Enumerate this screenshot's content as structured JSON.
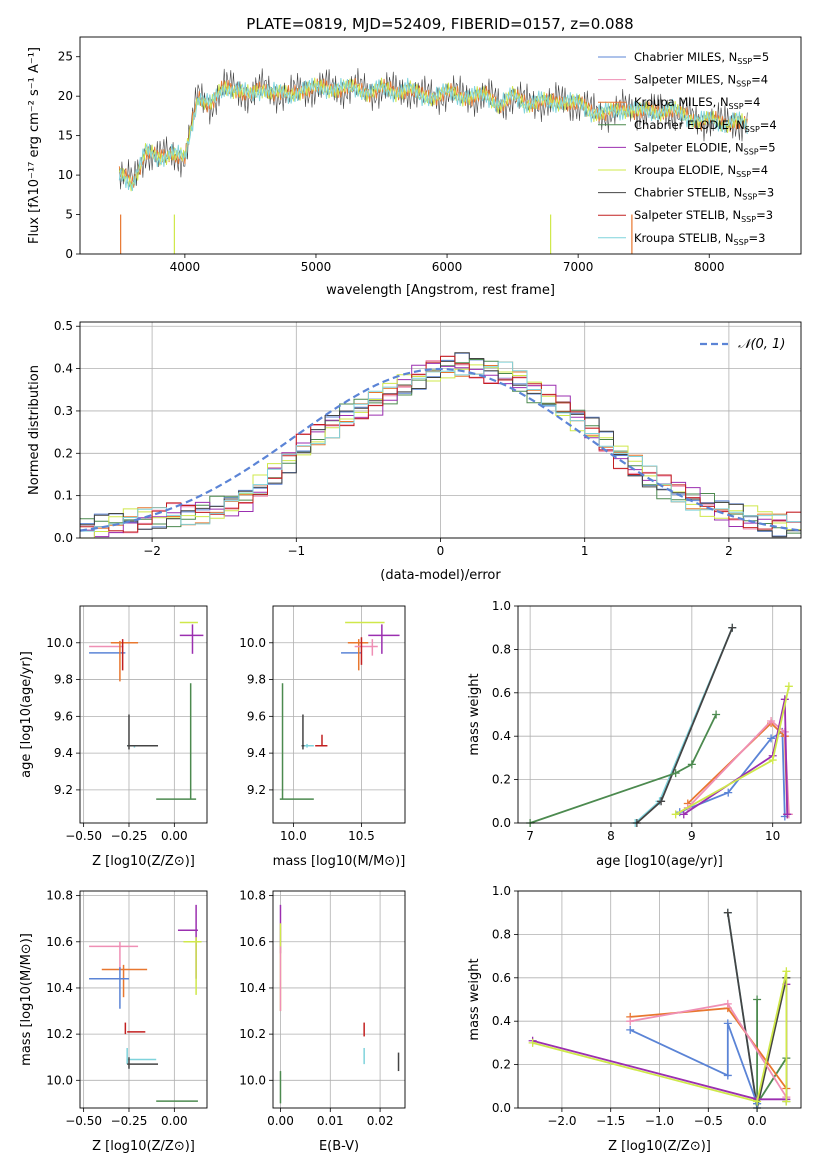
{
  "title": "PLATE=0819, MJD=52409, FIBERID=0157, z=0.088",
  "colors": {
    "Chabrier MILES": "#5b84d6",
    "Salpeter MILES": "#ef8fb5",
    "Kroupa MILES": "#e8772f",
    "Chabrier ELODIE": "#4c8a4f",
    "Salpeter ELODIE": "#9b2fb0",
    "Kroupa ELODIE": "#cfe84a",
    "Chabrier STELIB": "#444444",
    "Salpeter STELIB": "#c22020",
    "Kroupa STELIB": "#7fd3dc",
    "gauss": "#5b84d6",
    "grid": "#b0b0b0"
  },
  "chart_data": [
    {
      "type": "line",
      "name": "spectrum",
      "xlabel": "wavelength [Angstrom, rest frame]",
      "ylabel": "Flux [fλ10⁻¹⁷ erg cm⁻² s⁻¹ A⁻¹]",
      "xlim": [
        3200,
        8700
      ],
      "ylim": [
        0,
        27.5
      ],
      "xticks": [
        4000,
        5000,
        6000,
        7000,
        8000
      ],
      "yticks": [
        0,
        5,
        10,
        15,
        20,
        25
      ],
      "grid": false,
      "legend": "top-right",
      "legend_entries": [
        {
          "name": "Chabrier MILES, N",
          "n": "5"
        },
        {
          "name": "Salpeter MILES, N",
          "n": "4"
        },
        {
          "name": "Kroupa MILES, N",
          "n": "4"
        },
        {
          "name": "Chabrier ELODIE, N",
          "n": "4"
        },
        {
          "name": "Salpeter ELODIE, N",
          "n": "5"
        },
        {
          "name": "Kroupa ELODIE, N",
          "n": "4"
        },
        {
          "name": "Chabrier STELIB, N",
          "n": "3"
        },
        {
          "name": "Salpeter STELIB, N",
          "n": "3"
        },
        {
          "name": "Kroupa STELIB, N",
          "n": "3"
        }
      ],
      "legend_sub": "SSP",
      "data_points": [
        [
          3500,
          10
        ],
        [
          3600,
          9
        ],
        [
          3700,
          13
        ],
        [
          3800,
          12
        ],
        [
          3900,
          13
        ],
        [
          4000,
          12
        ],
        [
          4100,
          20
        ],
        [
          4200,
          19
        ],
        [
          4300,
          21
        ],
        [
          4400,
          21
        ],
        [
          4500,
          20
        ],
        [
          4600,
          21
        ],
        [
          4700,
          20.5
        ],
        [
          4800,
          20
        ],
        [
          4900,
          21
        ],
        [
          5000,
          21
        ],
        [
          5100,
          21
        ],
        [
          5200,
          21
        ],
        [
          5300,
          21
        ],
        [
          5400,
          20.5
        ],
        [
          5500,
          21
        ],
        [
          5600,
          20.5
        ],
        [
          5700,
          21
        ],
        [
          5800,
          20
        ],
        [
          5900,
          20
        ],
        [
          6000,
          20.5
        ],
        [
          6100,
          20
        ],
        [
          6200,
          20
        ],
        [
          6300,
          20
        ],
        [
          6400,
          19
        ],
        [
          6500,
          20
        ],
        [
          6600,
          19
        ],
        [
          6700,
          19.5
        ],
        [
          6800,
          19
        ],
        [
          6900,
          19.5
        ],
        [
          7000,
          19
        ],
        [
          7100,
          18
        ],
        [
          7200,
          18
        ],
        [
          7300,
          18
        ],
        [
          7400,
          18.5
        ],
        [
          7500,
          18
        ],
        [
          7600,
          18
        ],
        [
          7700,
          18.5
        ],
        [
          7800,
          17.5
        ],
        [
          7900,
          17
        ],
        [
          8000,
          17
        ],
        [
          8100,
          16.5
        ],
        [
          8200,
          17
        ],
        [
          8300,
          16
        ]
      ]
    },
    {
      "type": "line",
      "name": "residual histograms",
      "xlabel": "(data-model)/error",
      "ylabel": "Normed distribution",
      "xlim": [
        -2.5,
        2.5
      ],
      "ylim": [
        0,
        0.51
      ],
      "xticks": [
        -2,
        -1,
        0,
        1,
        2
      ],
      "xtick_labels": [
        "−2",
        "−1",
        "0",
        "1",
        "2"
      ],
      "yticks": [
        0.0,
        0.1,
        0.2,
        0.3,
        0.4,
        0.5
      ],
      "grid": true,
      "legend": "top-right",
      "gauss_label": "𝒩(0, 1)",
      "hist_profile_x": [
        -2.5,
        -2.3,
        -2.1,
        -1.9,
        -1.7,
        -1.5,
        -1.3,
        -1.1,
        -0.9,
        -0.7,
        -0.5,
        -0.3,
        -0.1,
        0.1,
        0.3,
        0.5,
        0.7,
        0.9,
        1.1,
        1.3,
        1.5,
        1.7,
        1.9,
        2.1,
        2.3,
        2.5
      ],
      "hist_profile_y": [
        0.02,
        0.03,
        0.045,
        0.05,
        0.06,
        0.07,
        0.1,
        0.17,
        0.23,
        0.28,
        0.31,
        0.35,
        0.39,
        0.41,
        0.4,
        0.38,
        0.34,
        0.3,
        0.24,
        0.18,
        0.13,
        0.1,
        0.07,
        0.05,
        0.035,
        0.03
      ]
    },
    {
      "type": "scatter",
      "name": "age vs Z",
      "xlabel": "Z [log10(Z/Z⊙)]",
      "ylabel": "age  [log10(age/yr)]",
      "xlim": [
        -0.52,
        0.18
      ],
      "ylim": [
        9.02,
        10.2
      ],
      "xticks": [
        -0.5,
        -0.25,
        0.0
      ],
      "xtick_labels": [
        "−0.50",
        "−0.25",
        "0.00"
      ],
      "yticks": [
        9.2,
        9.4,
        9.6,
        9.8,
        10.0
      ],
      "grid": true,
      "points": [
        {
          "model": "Chabrier MILES",
          "x": -0.37,
          "y": 9.945,
          "xlo": -0.47,
          "xhi": -0.27,
          "ylo": 9.945,
          "yhi": 9.945
        },
        {
          "model": "Salpeter MILES",
          "x": -0.38,
          "y": 9.98,
          "xlo": -0.47,
          "xhi": -0.28,
          "ylo": 9.98,
          "yhi": 9.98
        },
        {
          "model": "Kroupa MILES",
          "x": -0.3,
          "y": 10.0,
          "xlo": -0.35,
          "xhi": -0.2,
          "ylo": 9.79,
          "yhi": 10.01
        },
        {
          "model": "Salpeter STELIB",
          "x": -0.285,
          "y": 9.98,
          "xlo": -0.285,
          "xhi": -0.285,
          "ylo": 9.85,
          "yhi": 10.02
        },
        {
          "model": "Chabrier ELODIE",
          "x": 0.09,
          "y": 9.15,
          "xlo": -0.1,
          "xhi": 0.12,
          "ylo": 9.15,
          "yhi": 9.78
        },
        {
          "model": "Kroupa ELODIE",
          "x": 0.09,
          "y": 10.11,
          "xlo": 0.03,
          "xhi": 0.13,
          "ylo": 10.11,
          "yhi": 10.11
        },
        {
          "model": "Salpeter ELODIE",
          "x": 0.1,
          "y": 10.04,
          "xlo": 0.03,
          "xhi": 0.16,
          "ylo": 9.94,
          "yhi": 10.1
        },
        {
          "model": "Kroupa STELIB",
          "x": -0.22,
          "y": 9.44,
          "xlo": -0.26,
          "xhi": -0.12,
          "ylo": 9.43,
          "yhi": 9.44
        },
        {
          "model": "Chabrier STELIB",
          "x": -0.25,
          "y": 9.44,
          "xlo": -0.26,
          "xhi": -0.09,
          "ylo": 9.42,
          "yhi": 9.61
        }
      ]
    },
    {
      "type": "scatter",
      "name": "age vs mass",
      "xlabel": "mass [log10(M/M⊙)]",
      "ylabel": "",
      "xlim": [
        9.85,
        10.82
      ],
      "ylim": [
        9.02,
        10.2
      ],
      "xticks": [
        10.0,
        10.5
      ],
      "xtick_labels": [
        "10.0",
        "10.5"
      ],
      "yticks": [
        9.2,
        9.4,
        9.6,
        9.8,
        10.0
      ],
      "grid": true,
      "points": [
        {
          "model": "Chabrier MILES",
          "x": 10.44,
          "y": 9.945,
          "xlo": 10.35,
          "xhi": 10.5,
          "ylo": 9.945,
          "yhi": 9.945
        },
        {
          "model": "Kroupa MILES",
          "x": 10.48,
          "y": 10.0,
          "xlo": 10.4,
          "xhi": 10.55,
          "ylo": 9.85,
          "yhi": 10.02
        },
        {
          "model": "Salpeter MILES",
          "x": 10.58,
          "y": 9.98,
          "xlo": 10.45,
          "xhi": 10.62,
          "ylo": 9.93,
          "yhi": 10.02
        },
        {
          "model": "Salpeter STELIB",
          "x": 10.5,
          "y": 10.0,
          "xlo": 10.5,
          "xhi": 10.5,
          "ylo": 9.88,
          "yhi": 10.03
        },
        {
          "model": "Kroupa ELODIE",
          "x": 10.6,
          "y": 10.11,
          "xlo": 10.38,
          "xhi": 10.67,
          "ylo": 10.11,
          "yhi": 10.11
        },
        {
          "model": "Salpeter ELODIE",
          "x": 10.65,
          "y": 10.04,
          "xlo": 10.55,
          "xhi": 10.78,
          "ylo": 9.94,
          "yhi": 10.1
        },
        {
          "model": "Chabrier ELODIE",
          "x": 9.92,
          "y": 9.15,
          "xlo": 9.9,
          "xhi": 10.15,
          "ylo": 9.15,
          "yhi": 9.78
        },
        {
          "model": "Chabrier STELIB",
          "x": 10.07,
          "y": 9.44,
          "xlo": 10.06,
          "xhi": 10.1,
          "ylo": 9.42,
          "yhi": 9.61
        },
        {
          "model": "Kroupa STELIB",
          "x": 10.1,
          "y": 9.44,
          "xlo": 10.08,
          "xhi": 10.15,
          "ylo": 9.43,
          "yhi": 9.45
        },
        {
          "model": "Salpeter STELIB",
          "x": 10.21,
          "y": 9.44,
          "xlo": 10.16,
          "xhi": 10.25,
          "ylo": 9.44,
          "yhi": 9.5
        }
      ]
    },
    {
      "type": "line",
      "name": "mass weight vs age",
      "xlabel": "age  [log10(age/yr)]",
      "ylabel": "mass weight",
      "xlim": [
        6.85,
        10.35
      ],
      "ylim": [
        0,
        1.0
      ],
      "xticks": [
        7,
        8,
        9,
        10
      ],
      "yticks": [
        0.0,
        0.2,
        0.4,
        0.6,
        0.8,
        1.0
      ],
      "grid": true,
      "series": [
        {
          "model": "Kroupa STELIB",
          "x": [
            8.3,
            8.6,
            9.5
          ],
          "y": [
            0.0,
            0.1,
            0.9
          ]
        },
        {
          "model": "Chabrier STELIB",
          "x": [
            8.32,
            8.62,
            9.5
          ],
          "y": [
            0.0,
            0.1,
            0.9
          ]
        },
        {
          "model": "Chabrier ELODIE",
          "x": [
            7.0,
            8.8,
            9.0,
            9.3
          ],
          "y": [
            0.0,
            0.23,
            0.27,
            0.5
          ]
        },
        {
          "model": "Chabrier MILES",
          "x": [
            8.85,
            9.45,
            9.98,
            10.12,
            10.15
          ],
          "y": [
            0.05,
            0.14,
            0.39,
            0.42,
            0.03
          ]
        },
        {
          "model": "Kroupa MILES",
          "x": [
            8.95,
            9.98,
            10.15,
            10.18
          ],
          "y": [
            0.09,
            0.46,
            0.4,
            0.04
          ]
        },
        {
          "model": "Salpeter MILES",
          "x": [
            8.95,
            9.98,
            10.15,
            10.2
          ],
          "y": [
            0.07,
            0.47,
            0.42,
            0.04
          ]
        },
        {
          "model": "Salpeter ELODIE",
          "x": [
            8.9,
            10.0,
            10.15,
            10.18
          ],
          "y": [
            0.04,
            0.31,
            0.57,
            0.04
          ]
        },
        {
          "model": "Kroupa ELODIE",
          "x": [
            8.8,
            10.0,
            10.2
          ],
          "y": [
            0.04,
            0.29,
            0.63
          ]
        }
      ]
    },
    {
      "type": "scatter",
      "name": "mass vs Z",
      "xlabel": "Z [log10(Z/Z⊙)]",
      "ylabel": "mass [log10(M/M⊙)]",
      "xlim": [
        -0.52,
        0.18
      ],
      "ylim": [
        9.88,
        10.82
      ],
      "xticks": [
        -0.5,
        -0.25,
        0.0
      ],
      "xtick_labels": [
        "−0.50",
        "−0.25",
        "0.00"
      ],
      "yticks": [
        10.0,
        10.2,
        10.4,
        10.6,
        10.8
      ],
      "grid": true,
      "points": [
        {
          "model": "Salpeter MILES",
          "x": -0.3,
          "y": 10.58,
          "xlo": -0.47,
          "xhi": -0.2,
          "ylo": 10.48,
          "yhi": 10.6
        },
        {
          "model": "Kroupa MILES",
          "x": -0.28,
          "y": 10.48,
          "xlo": -0.4,
          "xhi": -0.15,
          "ylo": 10.36,
          "yhi": 10.5
        },
        {
          "model": "Chabrier MILES",
          "x": -0.3,
          "y": 10.44,
          "xlo": -0.47,
          "xhi": -0.25,
          "ylo": 10.31,
          "yhi": 10.49
        },
        {
          "model": "Salpeter ELODIE",
          "x": 0.12,
          "y": 10.65,
          "xlo": 0.02,
          "xhi": 0.13,
          "ylo": 10.44,
          "yhi": 10.76
        },
        {
          "model": "Kroupa ELODIE",
          "x": 0.12,
          "y": 10.6,
          "xlo": 0.05,
          "xhi": 0.15,
          "ylo": 10.37,
          "yhi": 10.62
        },
        {
          "model": "Salpeter STELIB",
          "x": -0.27,
          "y": 10.21,
          "xlo": -0.26,
          "xhi": -0.16,
          "ylo": 10.2,
          "yhi": 10.25
        },
        {
          "model": "Kroupa STELIB",
          "x": -0.26,
          "y": 10.09,
          "xlo": -0.26,
          "xhi": -0.1,
          "ylo": 10.07,
          "yhi": 10.14
        },
        {
          "model": "Chabrier STELIB",
          "x": -0.25,
          "y": 10.07,
          "xlo": -0.26,
          "xhi": -0.09,
          "ylo": 10.05,
          "yhi": 10.1
        },
        {
          "model": "Chabrier ELODIE",
          "x": 0.09,
          "y": 9.91,
          "xlo": -0.1,
          "xhi": 0.13,
          "ylo": 9.91,
          "yhi": 9.91
        }
      ]
    },
    {
      "type": "scatter",
      "name": "mass vs E(B-V)",
      "xlabel": "E(B-V)",
      "ylabel": "",
      "xlim": [
        -0.0015,
        0.025
      ],
      "ylim": [
        9.88,
        10.82
      ],
      "xticks": [
        0.0,
        0.01,
        0.02
      ],
      "xtick_labels": [
        "0.00",
        "0.01",
        "0.02"
      ],
      "yticks": [
        10.0,
        10.2,
        10.4,
        10.6,
        10.8
      ],
      "grid": true,
      "points": [
        {
          "model": "Salpeter ELODIE",
          "x": 0.0,
          "y": 10.65,
          "ylo": 10.55,
          "yhi": 10.76
        },
        {
          "model": "Kroupa ELODIE",
          "x": 0.0,
          "y": 10.55,
          "ylo": 10.3,
          "yhi": 10.68
        },
        {
          "model": "Salpeter MILES",
          "x": 0.0,
          "y": 10.45,
          "ylo": 10.3,
          "yhi": 10.58
        },
        {
          "model": "Chabrier ELODIE",
          "x": 0.0,
          "y": 9.95,
          "ylo": 9.9,
          "yhi": 10.04
        },
        {
          "model": "Salpeter STELIB",
          "x": 0.0168,
          "y": 10.22,
          "ylo": 10.19,
          "yhi": 10.25
        },
        {
          "model": "Kroupa STELIB",
          "x": 0.0168,
          "y": 10.1,
          "ylo": 10.07,
          "yhi": 10.14
        },
        {
          "model": "Chabrier STELIB",
          "x": 0.0237,
          "y": 10.08,
          "ylo": 10.04,
          "yhi": 10.12
        }
      ]
    },
    {
      "type": "line",
      "name": "mass weight vs Z",
      "xlabel": "Z [log10(Z/Z⊙)]",
      "ylabel": "mass weight",
      "xlim": [
        -2.45,
        0.45
      ],
      "ylim": [
        0,
        1.0
      ],
      "xticks": [
        -2.0,
        -1.5,
        -1.0,
        -0.5,
        0.0
      ],
      "xtick_labels": [
        "−2.0",
        "−1.5",
        "−1.0",
        "−0.5",
        "0.0"
      ],
      "yticks": [
        0.0,
        0.2,
        0.4,
        0.6,
        0.8,
        1.0
      ],
      "grid": true,
      "series": [
        {
          "model": "Kroupa STELIB",
          "x": [
            -0.3,
            0.0
          ],
          "y": [
            0.9,
            0.0
          ]
        },
        {
          "model": "Chabrier STELIB",
          "x": [
            -0.3,
            0.0,
            0.3
          ],
          "y": [
            0.9,
            0.0,
            0.6
          ]
        },
        {
          "model": "Chabrier ELODIE",
          "x": [
            0.0,
            0.0,
            0.3,
            0.3
          ],
          "y": [
            0.5,
            0.02,
            0.23,
            0.03
          ]
        },
        {
          "model": "Kroupa MILES",
          "x": [
            -1.3,
            -0.3,
            0.3
          ],
          "y": [
            0.42,
            0.46,
            0.09
          ]
        },
        {
          "model": "Salpeter MILES",
          "x": [
            -1.3,
            -0.3,
            0.3
          ],
          "y": [
            0.4,
            0.48,
            0.05
          ]
        },
        {
          "model": "Chabrier MILES",
          "x": [
            -1.3,
            -0.3,
            -0.3,
            0.0
          ],
          "y": [
            0.36,
            0.15,
            0.39,
            0.02
          ]
        },
        {
          "model": "Salpeter ELODIE",
          "x": [
            -2.3,
            0.0,
            0.3,
            0.3
          ],
          "y": [
            0.31,
            0.04,
            0.04,
            0.57
          ]
        },
        {
          "model": "Kroupa ELODIE",
          "x": [
            -2.3,
            0.0,
            0.3,
            0.3
          ],
          "y": [
            0.3,
            0.03,
            0.63,
            0.03
          ]
        }
      ]
    }
  ]
}
